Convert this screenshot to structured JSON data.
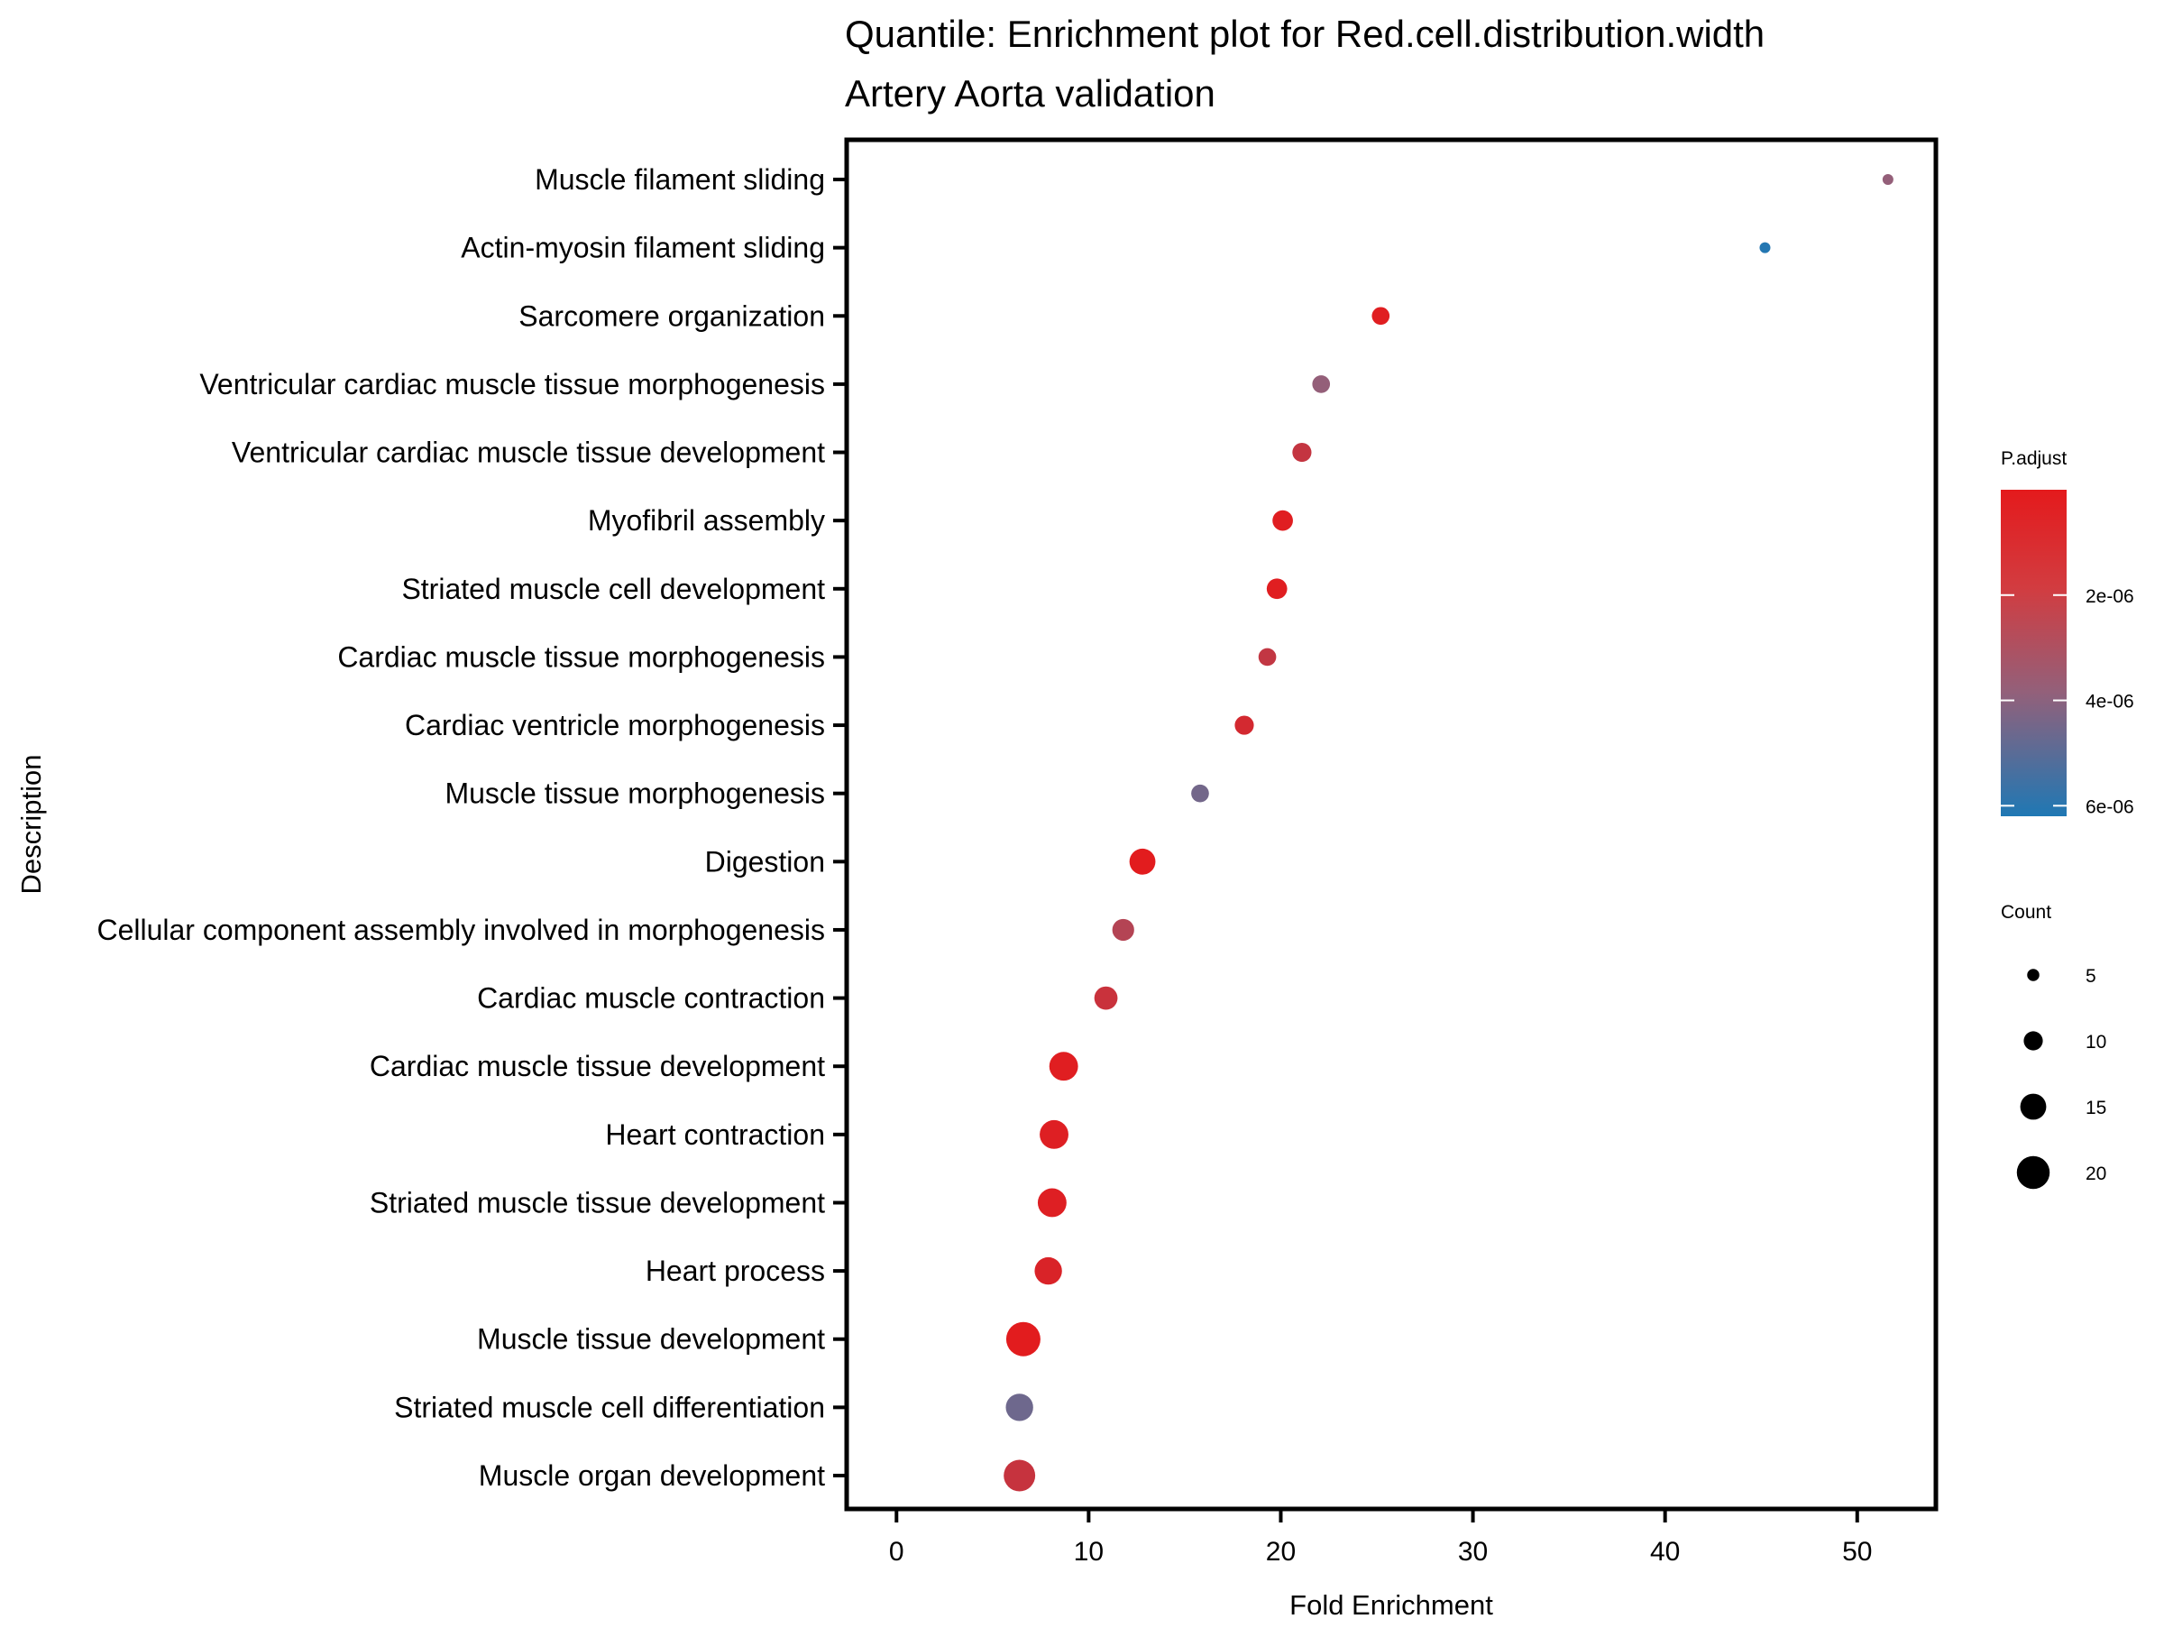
{
  "chart_data": {
    "type": "scatter",
    "title": "Quantile: Enrichment plot for Red.cell.distribution.width",
    "subtitle": "Artery Aorta validation",
    "xlabel": "Fold Enrichment",
    "ylabel": "Description",
    "xlim": [
      -2.5,
      54
    ],
    "xticks": [
      0,
      10,
      20,
      30,
      40,
      50
    ],
    "xtick_labels": [
      "0",
      "10",
      "20",
      "30",
      "40",
      "50"
    ],
    "grid": false,
    "colors": {
      "low_padj": "#e41a1c",
      "high_padj": "#1f78b4",
      "axis": "#000000"
    },
    "color_legend": {
      "title": "P.adjust",
      "range": [
        0,
        6.2e-06
      ],
      "ticks": [
        2e-06,
        4e-06,
        6e-06
      ],
      "tick_labels": [
        "2e-06",
        "4e-06",
        "6e-06"
      ]
    },
    "size_legend": {
      "title": "Count",
      "values": [
        5,
        10,
        15,
        20
      ],
      "labels": [
        "5",
        "10",
        "15",
        "20"
      ]
    },
    "points": [
      {
        "label": "Muscle filament sliding",
        "fold_enrichment": 51.6,
        "p_adjust": 3.8e-06,
        "count": 4
      },
      {
        "label": "Actin-myosin filament sliding",
        "fold_enrichment": 45.2,
        "p_adjust": 6.1e-06,
        "count": 4
      },
      {
        "label": "Sarcomere organization",
        "fold_enrichment": 25.2,
        "p_adjust": 2e-07,
        "count": 9
      },
      {
        "label": "Ventricular cardiac muscle tissue morphogenesis",
        "fold_enrichment": 22.1,
        "p_adjust": 3.8e-06,
        "count": 9
      },
      {
        "label": "Ventricular cardiac muscle tissue development",
        "fold_enrichment": 21.1,
        "p_adjust": 1.5e-06,
        "count": 10
      },
      {
        "label": "Myofibril assembly",
        "fold_enrichment": 20.1,
        "p_adjust": 2e-07,
        "count": 11
      },
      {
        "label": "Striated muscle cell development",
        "fold_enrichment": 19.8,
        "p_adjust": 2e-07,
        "count": 11
      },
      {
        "label": "Cardiac muscle tissue morphogenesis",
        "fold_enrichment": 19.3,
        "p_adjust": 1.6e-06,
        "count": 9
      },
      {
        "label": "Cardiac ventricle morphogenesis",
        "fold_enrichment": 18.1,
        "p_adjust": 8e-07,
        "count": 10
      },
      {
        "label": "Muscle tissue morphogenesis",
        "fold_enrichment": 15.8,
        "p_adjust": 4.5e-06,
        "count": 9
      },
      {
        "label": "Digestion",
        "fold_enrichment": 12.8,
        "p_adjust": 1e-07,
        "count": 15
      },
      {
        "label": "Cellular component assembly involved in morphogenesis",
        "fold_enrichment": 11.8,
        "p_adjust": 2.3e-06,
        "count": 12
      },
      {
        "label": "Cardiac muscle contraction",
        "fold_enrichment": 10.9,
        "p_adjust": 1.3e-06,
        "count": 13
      },
      {
        "label": "Cardiac muscle tissue development",
        "fold_enrichment": 8.7,
        "p_adjust": 2e-07,
        "count": 17
      },
      {
        "label": "Heart contraction",
        "fold_enrichment": 8.2,
        "p_adjust": 3e-07,
        "count": 17
      },
      {
        "label": "Striated muscle tissue development",
        "fold_enrichment": 8.1,
        "p_adjust": 3e-07,
        "count": 17
      },
      {
        "label": "Heart process",
        "fold_enrichment": 7.9,
        "p_adjust": 5e-07,
        "count": 16
      },
      {
        "label": "Muscle tissue development",
        "fold_enrichment": 6.6,
        "p_adjust": 1e-07,
        "count": 21
      },
      {
        "label": "Striated muscle cell differentiation",
        "fold_enrichment": 6.4,
        "p_adjust": 4.6e-06,
        "count": 16
      },
      {
        "label": "Muscle organ development",
        "fold_enrichment": 6.4,
        "p_adjust": 1.4e-06,
        "count": 19
      }
    ]
  }
}
